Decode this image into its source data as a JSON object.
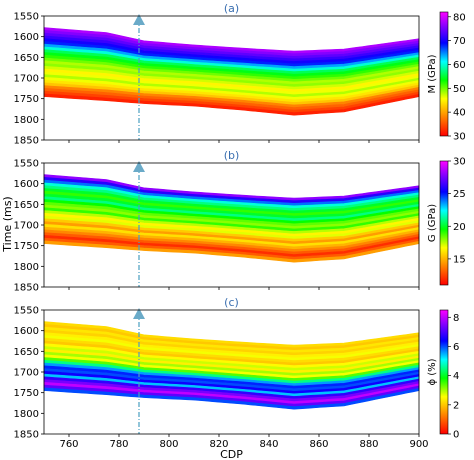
{
  "chart_data": {
    "type": "heatmap",
    "xlabel": "CDP",
    "ylabel": "Time (ms)",
    "xlim": [
      750,
      900
    ],
    "ylim": [
      1550,
      1850
    ],
    "x_ticks": [
      "760",
      "780",
      "800",
      "820",
      "840",
      "860",
      "880",
      "900"
    ],
    "x_tick_values": [
      760,
      780,
      800,
      820,
      840,
      860,
      880,
      900
    ],
    "y_ticks": [
      "1550",
      "1600",
      "1650",
      "1700",
      "1750",
      "1800",
      "1850"
    ],
    "y_tick_values": [
      1550,
      1600,
      1650,
      1700,
      1750,
      1800,
      1850
    ],
    "well_cdp": 788,
    "top_horizon": {
      "cdp": [
        750,
        775,
        790,
        810,
        830,
        850,
        870,
        900
      ],
      "time": [
        1578,
        1590,
        1610,
        1620,
        1628,
        1635,
        1630,
        1605
      ]
    },
    "bottom_horizon": {
      "cdp": [
        750,
        775,
        790,
        810,
        830,
        850,
        870,
        900
      ],
      "time": [
        1745,
        1755,
        1762,
        1768,
        1778,
        1790,
        1782,
        1745
      ]
    },
    "panels": [
      {
        "label": "(a)",
        "colorbar_label": "M (GPa)",
        "colorbar_ticks": [
          "30",
          "40",
          "50",
          "60",
          "70",
          "80"
        ],
        "colorbar_tick_values": [
          30,
          40,
          50,
          60,
          70,
          80
        ],
        "vmin": 30,
        "vmax": 82,
        "layer_values": [
          78,
          76,
          74,
          72,
          70,
          68,
          64,
          60,
          56,
          54,
          52,
          50,
          48,
          49,
          47,
          45,
          46,
          48,
          46,
          44,
          42,
          38,
          36,
          34,
          32
        ]
      },
      {
        "label": "(b)",
        "colorbar_label": "G (GPa)",
        "colorbar_ticks": [
          "15",
          "20",
          "25",
          "30"
        ],
        "colorbar_tick_values": [
          15,
          20,
          25,
          30
        ],
        "vmin": 11,
        "vmax": 30,
        "layer_values": [
          28,
          26,
          24,
          22,
          21,
          20,
          19,
          20,
          21,
          19.5,
          18.5,
          18,
          19,
          17.5,
          16.5,
          17,
          15.5,
          14.5,
          16,
          15,
          14,
          13,
          12,
          13,
          14.5
        ]
      },
      {
        "label": "(c)",
        "colorbar_label": "ϕ (%)",
        "colorbar_ticks": [
          "0",
          "2",
          "4",
          "6",
          "8"
        ],
        "colorbar_tick_values": [
          0,
          2,
          4,
          6,
          8
        ],
        "vmin": 0,
        "vmax": 8.5,
        "layer_values": [
          2.2,
          2.0,
          2.3,
          2.1,
          2.4,
          2.6,
          2.2,
          2.0,
          2.5,
          2.8,
          2.4,
          3.0,
          2.6,
          3.4,
          4.5,
          5.6,
          6.2,
          6.0,
          6.5,
          5.4,
          6.8,
          7.4,
          8.0,
          7.2,
          6.0
        ]
      }
    ]
  }
}
